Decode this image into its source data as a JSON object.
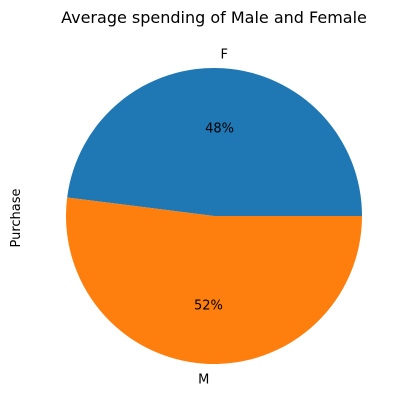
{
  "chart_data": {
    "type": "pie",
    "title": "Average spending of Male and Female",
    "ylabel": "Purchase",
    "slices": [
      {
        "label": "F",
        "value": 48,
        "pct_label": "48%",
        "color": "#1f77b4"
      },
      {
        "label": "M",
        "value": 52,
        "pct_label": "52%",
        "color": "#ff7f0e"
      }
    ],
    "start_angle_deg": 0,
    "direction": "counterclockwise"
  }
}
